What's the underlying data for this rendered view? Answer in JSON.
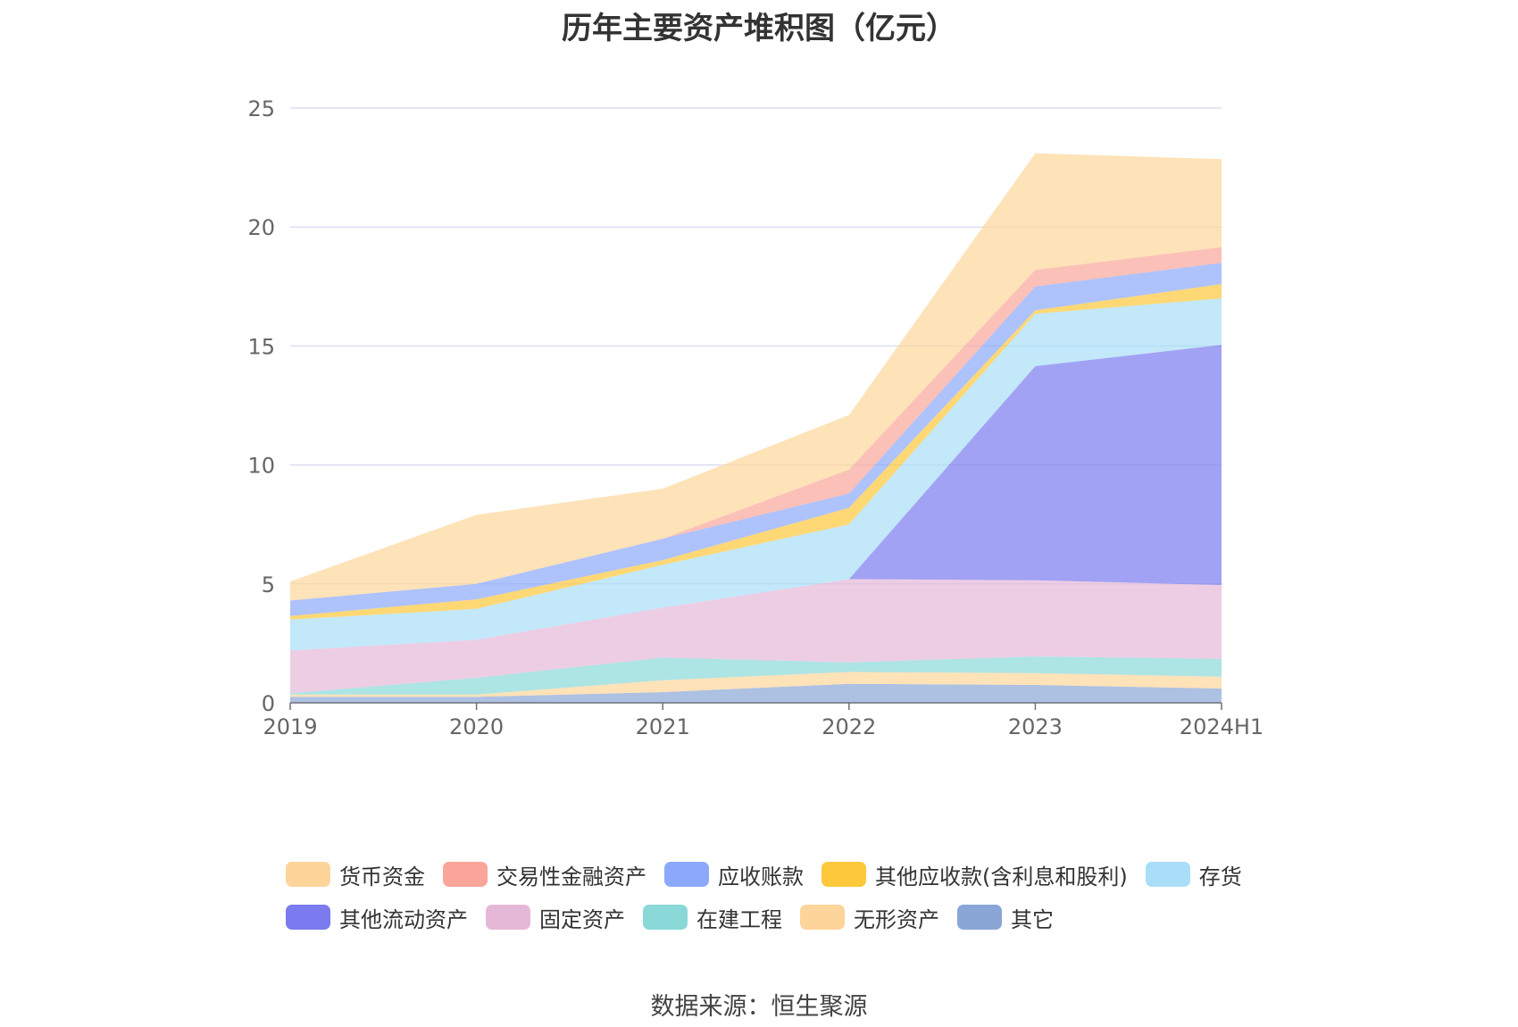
{
  "chart_data": {
    "type": "area",
    "stacked": true,
    "title": "历年主要资产堆积图（亿元）",
    "source": "数据来源：恒生聚源",
    "categories": [
      "2019",
      "2020",
      "2021",
      "2022",
      "2023",
      "2024H1"
    ],
    "ylim": [
      0,
      25
    ],
    "yticks": [
      0,
      5,
      10,
      15,
      20,
      25
    ],
    "grid": true,
    "legend_position": "bottom",
    "series": [
      {
        "name": "其它",
        "color": "#8aa6d6",
        "values": [
          0.25,
          0.25,
          0.45,
          0.8,
          0.75,
          0.6
        ]
      },
      {
        "name": "无形资产",
        "color": "#fdd59a",
        "values": [
          0.1,
          0.1,
          0.5,
          0.5,
          0.5,
          0.5
        ]
      },
      {
        "name": "在建工程",
        "color": "#8ad8d8",
        "values": [
          0.05,
          0.7,
          0.95,
          0.4,
          0.7,
          0.75
        ]
      },
      {
        "name": "固定资产",
        "color": "#e6b8d8",
        "values": [
          1.8,
          1.6,
          2.1,
          3.5,
          3.2,
          3.1
        ]
      },
      {
        "name": "其他流动资产",
        "color": "#7b7bef",
        "values": [
          0.0,
          0.0,
          0.0,
          0.0,
          9.0,
          10.1
        ]
      },
      {
        "name": "存货",
        "color": "#a8def8",
        "values": [
          1.3,
          1.3,
          1.8,
          2.3,
          2.2,
          1.95
        ]
      },
      {
        "name": "其他应收款(含利息和股利)",
        "color": "#fdc83a",
        "values": [
          0.15,
          0.4,
          0.2,
          0.7,
          0.15,
          0.6
        ]
      },
      {
        "name": "应收账款",
        "color": "#8ca8fb",
        "values": [
          0.65,
          0.65,
          0.9,
          0.6,
          1.0,
          0.9
        ]
      },
      {
        "name": "交易性金融资产",
        "color": "#f9a59a",
        "values": [
          0.0,
          0.0,
          0.0,
          1.0,
          0.7,
          0.65
        ]
      },
      {
        "name": "货币资金",
        "color": "#fdd59a",
        "values": [
          0.8,
          2.9,
          2.1,
          2.3,
          4.9,
          3.7
        ]
      }
    ]
  },
  "legend": {
    "row1": [
      {
        "label": "货币资金",
        "color": "#fdd59a"
      },
      {
        "label": "交易性金融资产",
        "color": "#f9a59a"
      },
      {
        "label": "应收账款",
        "color": "#8ca8fb"
      },
      {
        "label": "其他应收款(含利息和股利)",
        "color": "#fdc83a"
      },
      {
        "label": "存货",
        "color": "#a8def8"
      }
    ],
    "row2": [
      {
        "label": "其他流动资产",
        "color": "#7b7bef"
      },
      {
        "label": "固定资产",
        "color": "#e6b8d8"
      },
      {
        "label": "在建工程",
        "color": "#8ad8d8"
      },
      {
        "label": "无形资产",
        "color": "#fdd59a"
      },
      {
        "label": "其它",
        "color": "#8aa6d6"
      }
    ]
  }
}
